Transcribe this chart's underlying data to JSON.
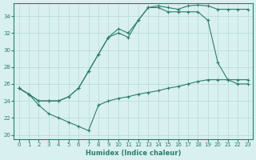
{
  "xlabel": "Humidex (Indice chaleur)",
  "xlim": [
    -0.5,
    23.5
  ],
  "ylim": [
    19.5,
    35.5
  ],
  "xticks": [
    0,
    1,
    2,
    3,
    4,
    5,
    6,
    7,
    8,
    9,
    10,
    11,
    12,
    13,
    14,
    15,
    16,
    17,
    18,
    19,
    20,
    21,
    22,
    23
  ],
  "yticks": [
    20,
    22,
    24,
    26,
    28,
    30,
    32,
    34
  ],
  "line_color": "#2e7d6e",
  "bg_color": "#d8f0f0",
  "grid_color": "#b8dada",
  "curves": [
    {
      "x": [
        0,
        1,
        2,
        3,
        4,
        5,
        6,
        7,
        8,
        9,
        10,
        11,
        12,
        13,
        14,
        15,
        16,
        17,
        18,
        19,
        20,
        21,
        22,
        23
      ],
      "y": [
        25.5,
        24.8,
        24.0,
        24.0,
        24.0,
        24.5,
        25.5,
        27.5,
        29.5,
        31.5,
        32.5,
        32.0,
        33.5,
        35.0,
        35.2,
        35.0,
        34.8,
        35.2,
        35.3,
        35.2,
        34.8,
        34.8,
        34.8,
        34.8
      ]
    },
    {
      "x": [
        0,
        1,
        2,
        3,
        4,
        5,
        6,
        7,
        8,
        9,
        10,
        11,
        12,
        13,
        14,
        15,
        16,
        17,
        18,
        19,
        20,
        21,
        22,
        23
      ],
      "y": [
        25.5,
        24.8,
        24.0,
        24.0,
        24.0,
        24.5,
        25.5,
        27.5,
        29.5,
        31.5,
        32.0,
        31.5,
        33.5,
        35.0,
        35.0,
        34.5,
        34.5,
        34.5,
        34.5,
        33.5,
        28.5,
        26.5,
        26.0,
        26.0
      ]
    },
    {
      "x": [
        0,
        1,
        2,
        3,
        4,
        5,
        6,
        7,
        8,
        9,
        10,
        11,
        12,
        13,
        14,
        15,
        16,
        17,
        18,
        19,
        20,
        21,
        22,
        23
      ],
      "y": [
        25.5,
        24.8,
        23.5,
        22.5,
        22.0,
        21.5,
        21.0,
        20.5,
        23.5,
        24.0,
        24.3,
        24.5,
        24.8,
        25.0,
        25.2,
        25.5,
        25.7,
        26.0,
        26.3,
        26.5,
        26.5,
        26.5,
        26.5,
        26.5
      ]
    }
  ]
}
